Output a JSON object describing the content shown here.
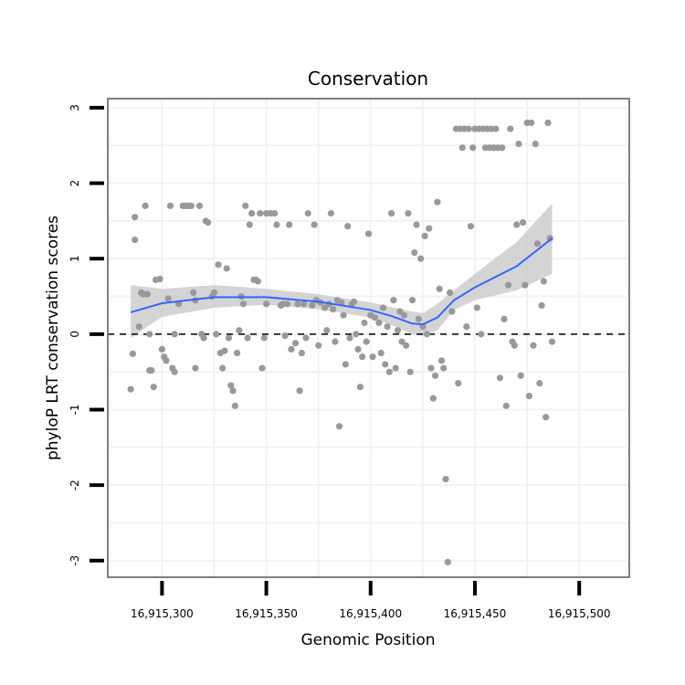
{
  "chart_data": {
    "type": "scatter",
    "title": "Conservation",
    "xlabel": "Genomic Position",
    "ylabel": "phyloP LRT conservation scores",
    "xlim": [
      16915274,
      16915524
    ],
    "ylim": [
      -3.22,
      3.12
    ],
    "x_ticks": [
      16915300,
      16915350,
      16915400,
      16915450,
      16915500
    ],
    "x_tick_labels": [
      "16,915,300",
      "16,915,350",
      "16,915,400",
      "16,915,450",
      "16,915,500"
    ],
    "y_ticks": [
      -3,
      -2,
      -1,
      0,
      1,
      2,
      3
    ],
    "y_tick_labels": [
      "-3",
      "-2",
      "-1",
      "0",
      "1",
      "2",
      "3"
    ],
    "reference_line": {
      "y": 0,
      "style": "dashed"
    },
    "colors": {
      "points": "#999999",
      "smooth": "#3366FF",
      "ribbon": "#cccccc",
      "frame": "#7f7f7f",
      "grid": "#f2f2f2"
    },
    "points": [
      [
        16915285,
        -0.73
      ],
      [
        16915286,
        -0.26
      ],
      [
        16915287,
        1.25
      ],
      [
        16915287,
        1.55
      ],
      [
        16915289,
        0.1
      ],
      [
        16915290,
        0.55
      ],
      [
        16915291,
        0.53
      ],
      [
        16915292,
        1.7
      ],
      [
        16915293,
        0.53
      ],
      [
        16915294,
        0.0
      ],
      [
        16915294,
        -0.48
      ],
      [
        16915295,
        -0.48
      ],
      [
        16915296,
        -0.7
      ],
      [
        16915297,
        0.72
      ],
      [
        16915299,
        0.73
      ],
      [
        16915300,
        -0.2
      ],
      [
        16915301,
        -0.3
      ],
      [
        16915302,
        -0.35
      ],
      [
        16915303,
        0.47
      ],
      [
        16915304,
        1.7
      ],
      [
        16915305,
        -0.45
      ],
      [
        16915306,
        -0.5
      ],
      [
        16915306,
        0.0
      ],
      [
        16915308,
        0.4
      ],
      [
        16915310,
        1.7
      ],
      [
        16915311,
        1.7
      ],
      [
        16915312,
        1.7
      ],
      [
        16915313,
        1.7
      ],
      [
        16915314,
        1.7
      ],
      [
        16915315,
        0.55
      ],
      [
        16915316,
        -0.45
      ],
      [
        16915316,
        0.45
      ],
      [
        16915318,
        1.7
      ],
      [
        16915319,
        0.0
      ],
      [
        16915320,
        -0.05
      ],
      [
        16915321,
        1.5
      ],
      [
        16915322,
        1.48
      ],
      [
        16915324,
        0.5
      ],
      [
        16915325,
        0.55
      ],
      [
        16915326,
        0.0
      ],
      [
        16915327,
        0.92
      ],
      [
        16915328,
        -0.25
      ],
      [
        16915329,
        -0.45
      ],
      [
        16915330,
        -0.22
      ],
      [
        16915331,
        0.87
      ],
      [
        16915332,
        -0.05
      ],
      [
        16915333,
        -0.68
      ],
      [
        16915334,
        -0.75
      ],
      [
        16915335,
        -0.95
      ],
      [
        16915336,
        -0.25
      ],
      [
        16915337,
        0.05
      ],
      [
        16915338,
        0.5
      ],
      [
        16915339,
        0.4
      ],
      [
        16915340,
        1.7
      ],
      [
        16915341,
        -0.05
      ],
      [
        16915342,
        1.45
      ],
      [
        16915343,
        1.6
      ],
      [
        16915344,
        0.72
      ],
      [
        16915345,
        0.72
      ],
      [
        16915346,
        0.7
      ],
      [
        16915347,
        1.6
      ],
      [
        16915348,
        -0.45
      ],
      [
        16915349,
        -0.05
      ],
      [
        16915350,
        0.4
      ],
      [
        16915350,
        1.6
      ],
      [
        16915352,
        1.6
      ],
      [
        16915354,
        1.6
      ],
      [
        16915355,
        1.45
      ],
      [
        16915357,
        0.38
      ],
      [
        16915358,
        0.4
      ],
      [
        16915359,
        -0.02
      ],
      [
        16915360,
        0.4
      ],
      [
        16915361,
        1.45
      ],
      [
        16915362,
        -0.2
      ],
      [
        16915364,
        -0.12
      ],
      [
        16915365,
        0.4
      ],
      [
        16915366,
        -0.75
      ],
      [
        16915367,
        -0.25
      ],
      [
        16915368,
        0.4
      ],
      [
        16915369,
        -0.05
      ],
      [
        16915370,
        1.6
      ],
      [
        16915372,
        0.38
      ],
      [
        16915373,
        1.45
      ],
      [
        16915374,
        0.45
      ],
      [
        16915375,
        -0.15
      ],
      [
        16915376,
        0.42
      ],
      [
        16915378,
        0.35
      ],
      [
        16915379,
        0.05
      ],
      [
        16915380,
        0.4
      ],
      [
        16915381,
        1.6
      ],
      [
        16915382,
        0.33
      ],
      [
        16915383,
        -0.1
      ],
      [
        16915384,
        0.45
      ],
      [
        16915385,
        -1.22
      ],
      [
        16915386,
        0.42
      ],
      [
        16915387,
        0.25
      ],
      [
        16915388,
        -0.4
      ],
      [
        16915389,
        1.43
      ],
      [
        16915390,
        -0.05
      ],
      [
        16915391,
        0.4
      ],
      [
        16915392,
        0.43
      ],
      [
        16915393,
        0.0
      ],
      [
        16915394,
        -0.2
      ],
      [
        16915395,
        -0.7
      ],
      [
        16915396,
        -0.3
      ],
      [
        16915397,
        0.15
      ],
      [
        16915398,
        -0.1
      ],
      [
        16915399,
        1.33
      ],
      [
        16915400,
        0.25
      ],
      [
        16915401,
        -0.3
      ],
      [
        16915402,
        0.22
      ],
      [
        16915404,
        0.15
      ],
      [
        16915405,
        -0.25
      ],
      [
        16915406,
        0.35
      ],
      [
        16915407,
        -0.4
      ],
      [
        16915408,
        0.1
      ],
      [
        16915409,
        -0.5
      ],
      [
        16915410,
        1.6
      ],
      [
        16915411,
        0.45
      ],
      [
        16915412,
        -0.45
      ],
      [
        16915413,
        0.05
      ],
      [
        16915414,
        0.3
      ],
      [
        16915415,
        -0.1
      ],
      [
        16915416,
        0.25
      ],
      [
        16915417,
        -0.15
      ],
      [
        16915418,
        1.6
      ],
      [
        16915419,
        -0.5
      ],
      [
        16915420,
        0.45
      ],
      [
        16915421,
        1.08
      ],
      [
        16915422,
        1.45
      ],
      [
        16915423,
        0.2
      ],
      [
        16915424,
        1.0
      ],
      [
        16915425,
        0.1
      ],
      [
        16915426,
        1.3
      ],
      [
        16915427,
        0.0
      ],
      [
        16915428,
        1.4
      ],
      [
        16915429,
        -0.45
      ],
      [
        16915430,
        -0.85
      ],
      [
        16915431,
        -0.55
      ],
      [
        16915432,
        1.75
      ],
      [
        16915433,
        0.6
      ],
      [
        16915434,
        -0.35
      ],
      [
        16915435,
        -0.45
      ],
      [
        16915436,
        -1.92
      ],
      [
        16915437,
        -3.02
      ],
      [
        16915438,
        0.55
      ],
      [
        16915439,
        0.3
      ],
      [
        16915441,
        2.72
      ],
      [
        16915442,
        -0.65
      ],
      [
        16915443,
        2.72
      ],
      [
        16915444,
        2.47
      ],
      [
        16915445,
        2.72
      ],
      [
        16915446,
        0.1
      ],
      [
        16915447,
        2.72
      ],
      [
        16915448,
        1.43
      ],
      [
        16915449,
        2.47
      ],
      [
        16915450,
        2.72
      ],
      [
        16915451,
        0.35
      ],
      [
        16915452,
        2.72
      ],
      [
        16915453,
        0.0
      ],
      [
        16915454,
        2.72
      ],
      [
        16915455,
        2.47
      ],
      [
        16915456,
        2.72
      ],
      [
        16915457,
        2.47
      ],
      [
        16915458,
        2.72
      ],
      [
        16915459,
        2.47
      ],
      [
        16915460,
        2.72
      ],
      [
        16915461,
        2.47
      ],
      [
        16915462,
        -0.58
      ],
      [
        16915463,
        2.47
      ],
      [
        16915464,
        0.2
      ],
      [
        16915465,
        -0.95
      ],
      [
        16915466,
        0.65
      ],
      [
        16915467,
        2.72
      ],
      [
        16915468,
        -0.1
      ],
      [
        16915469,
        -0.15
      ],
      [
        16915470,
        1.45
      ],
      [
        16915471,
        2.52
      ],
      [
        16915472,
        -0.55
      ],
      [
        16915473,
        1.48
      ],
      [
        16915474,
        0.65
      ],
      [
        16915475,
        2.8
      ],
      [
        16915476,
        -0.82
      ],
      [
        16915477,
        2.8
      ],
      [
        16915478,
        -0.15
      ],
      [
        16915479,
        2.52
      ],
      [
        16915480,
        1.2
      ],
      [
        16915481,
        -0.65
      ],
      [
        16915482,
        0.38
      ],
      [
        16915483,
        0.7
      ],
      [
        16915484,
        -1.1
      ],
      [
        16915485,
        2.8
      ],
      [
        16915486,
        1.27
      ],
      [
        16915487,
        -0.1
      ]
    ],
    "smooth_line": [
      [
        16915285,
        0.29
      ],
      [
        16915300,
        0.41
      ],
      [
        16915325,
        0.49
      ],
      [
        16915350,
        0.49
      ],
      [
        16915375,
        0.43
      ],
      [
        16915400,
        0.32
      ],
      [
        16915410,
        0.24
      ],
      [
        16915420,
        0.14
      ],
      [
        16915425,
        0.13
      ],
      [
        16915432,
        0.22
      ],
      [
        16915440,
        0.45
      ],
      [
        16915450,
        0.62
      ],
      [
        16915470,
        0.9
      ],
      [
        16915487,
        1.27
      ]
    ],
    "ribbon_upper": [
      [
        16915285,
        0.65
      ],
      [
        16915300,
        0.6
      ],
      [
        16915325,
        0.65
      ],
      [
        16915350,
        0.6
      ],
      [
        16915375,
        0.53
      ],
      [
        16915400,
        0.42
      ],
      [
        16915410,
        0.36
      ],
      [
        16915420,
        0.3
      ],
      [
        16915425,
        0.28
      ],
      [
        16915432,
        0.4
      ],
      [
        16915440,
        0.58
      ],
      [
        16915450,
        0.8
      ],
      [
        16915470,
        1.22
      ],
      [
        16915487,
        1.73
      ]
    ],
    "ribbon_lower": [
      [
        16915285,
        -0.05
      ],
      [
        16915300,
        0.23
      ],
      [
        16915325,
        0.35
      ],
      [
        16915350,
        0.39
      ],
      [
        16915375,
        0.33
      ],
      [
        16915400,
        0.22
      ],
      [
        16915410,
        0.12
      ],
      [
        16915420,
        0.0
      ],
      [
        16915425,
        -0.02
      ],
      [
        16915432,
        0.05
      ],
      [
        16915440,
        0.32
      ],
      [
        16915450,
        0.45
      ],
      [
        16915470,
        0.58
      ],
      [
        16915487,
        0.8
      ]
    ]
  }
}
